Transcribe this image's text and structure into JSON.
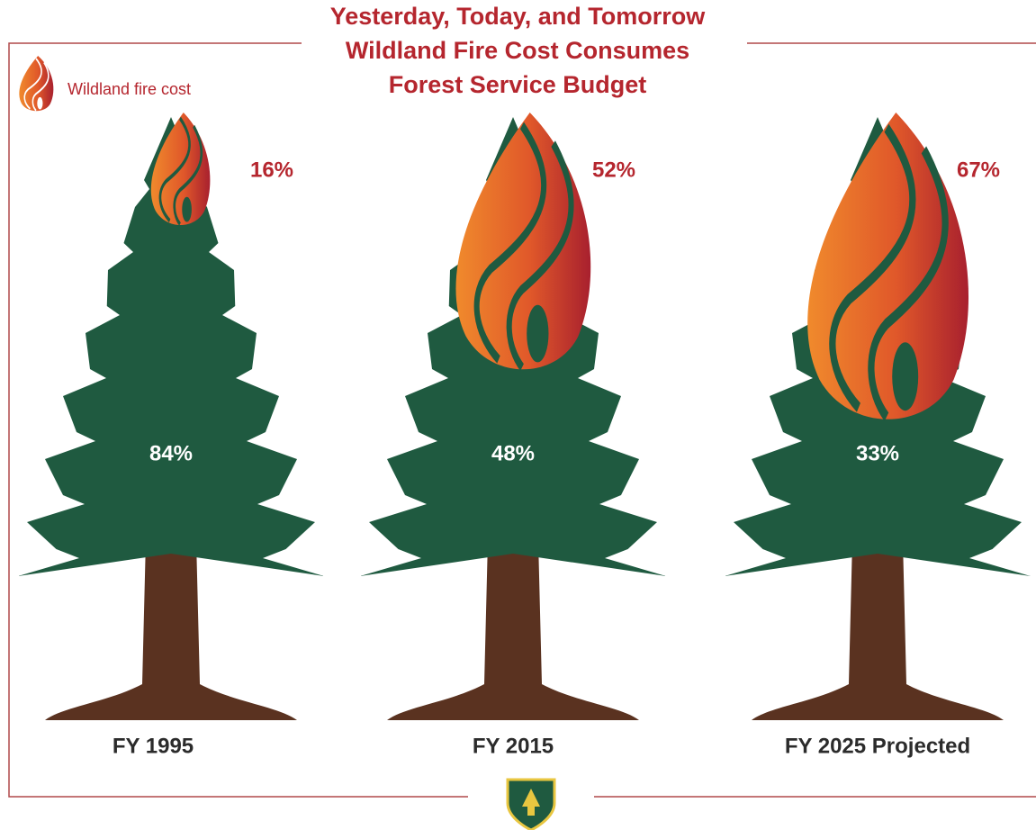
{
  "chart_data": {
    "type": "pictograph",
    "title": [
      "Yesterday, Today, and Tomorrow",
      "Wildland Fire Cost Consumes",
      "Forest Service Budget"
    ],
    "categories": [
      "FY 1995",
      "FY 2015",
      "FY 2025 Projected"
    ],
    "series": [
      {
        "name": "Wildland fire cost",
        "color": "#b5262e",
        "values": [
          16,
          52,
          67
        ],
        "value_labels": [
          "16%",
          "52%",
          "67%"
        ]
      },
      {
        "color": "#1f5a40",
        "values": [
          84,
          48,
          33
        ],
        "value_labels": [
          "84%",
          "48%",
          "33%"
        ]
      }
    ]
  }
}
